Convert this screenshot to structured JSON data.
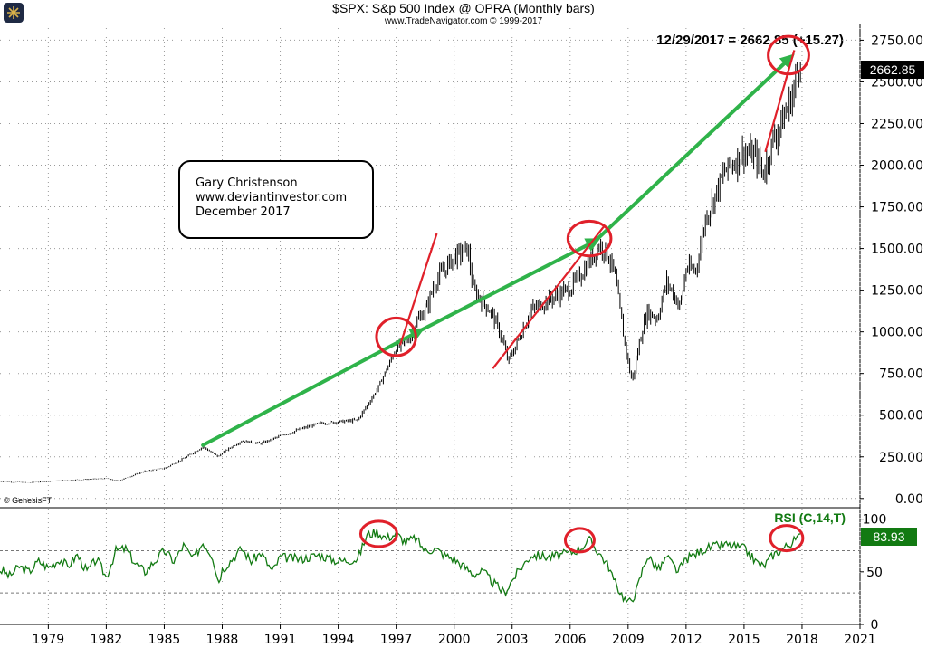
{
  "header": {
    "title": "$SPX:  S&p 500 Index @ OPRA  (Monthly bars)",
    "subtitle": "www.TradeNavigator.com © 1999-2017",
    "last_price_label": "12/29/2017 = 2662.85 (+15.27)",
    "last_price_badge": "2662.85"
  },
  "annotation": {
    "lines": [
      "Gary Christenson",
      "www.deviantinvestor.com",
      "December 2017"
    ]
  },
  "source_credit": "© GenesisFT",
  "rsi": {
    "label": "RSI (C,14,T)",
    "last_value_badge": "83.93"
  },
  "colors": {
    "price_line": "#000000",
    "rsi_line": "#127a12",
    "trend_arrow": "#2fb34a",
    "red_marks": "#e0202a",
    "grid": "#9a9a9a",
    "badge_bg": "#000000",
    "rsi_badge_bg": "#127a12"
  },
  "chart_data": [
    {
      "type": "line",
      "title": "$SPX: S&p 500 Index @ OPRA (Monthly bars)",
      "xlabel": "",
      "ylabel": "",
      "xlim": [
        1976.5,
        2021
      ],
      "ylim": [
        -50,
        2850
      ],
      "x_ticks": [
        "1979",
        "1982",
        "1985",
        "1988",
        "1991",
        "1994",
        "1997",
        "2000",
        "2003",
        "2006",
        "2009",
        "2012",
        "2015",
        "2018",
        "2021"
      ],
      "y_ticks": [
        "0.00",
        "250.00",
        "500.00",
        "750.00",
        "1000.00",
        "1250.00",
        "1500.00",
        "1750.00",
        "2000.00",
        "2250.00",
        "2500.00",
        "2750.00"
      ],
      "series": [
        {
          "name": "S&P 500 monthly close",
          "x": [
            1976.5,
            1978,
            1980,
            1982,
            1982.6,
            1984,
            1985,
            1986,
            1987,
            1987.8,
            1988,
            1989,
            1990,
            1991,
            1992,
            1993,
            1994,
            1995,
            1995.5,
            1996,
            1997,
            1997.6,
            1998,
            1998.6,
            1999,
            2000,
            2000.7,
            2001,
            2001.7,
            2002,
            2002.5,
            2002.8,
            2003,
            2004,
            2005,
            2006,
            2006.9,
            2007.5,
            2007.9,
            2008.3,
            2008.8,
            2009,
            2009.2,
            2009.7,
            2010,
            2010.5,
            2011,
            2011.7,
            2012,
            2012.5,
            2013,
            2014,
            2015,
            2015.6,
            2016,
            2016.5,
            2017,
            2017.5,
            2017.92
          ],
          "values": [
            100,
            95,
            110,
            120,
            105,
            165,
            180,
            240,
            310,
            250,
            275,
            345,
            330,
            375,
            415,
            450,
            460,
            470,
            560,
            650,
            900,
            950,
            1050,
            1150,
            1300,
            1450,
            1500,
            1250,
            1150,
            1100,
            950,
            820,
            870,
            1130,
            1200,
            1260,
            1400,
            1520,
            1480,
            1350,
            950,
            820,
            700,
            1000,
            1120,
            1080,
            1300,
            1150,
            1380,
            1370,
            1680,
            1960,
            2080,
            2050,
            1950,
            2150,
            2270,
            2420,
            2662.85
          ]
        },
        {
          "name": "Trend arrow",
          "x": [
            1987,
            1998.2,
            2007.3,
            2017.4
          ],
          "values": [
            320,
            1005,
            1545,
            2645
          ]
        }
      ],
      "annotations": [
        {
          "text": "12/29/2017 = 2662.85 (+15.27)"
        },
        {
          "text": "2662.85"
        }
      ]
    },
    {
      "type": "line",
      "title": "RSI (C,14,T)",
      "xlim": [
        1976.5,
        2021
      ],
      "ylim": [
        0,
        110
      ],
      "y_ticks": [
        "0",
        "50",
        "100"
      ],
      "reference_lines": [
        30,
        70
      ],
      "series": [
        {
          "name": "RSI(14)",
          "x": [
            1976.5,
            1977,
            1977.5,
            1978,
            1978.5,
            1979,
            1979.6,
            1980,
            1980.5,
            1981,
            1981.5,
            1982,
            1982.5,
            1983,
            1983.5,
            1984,
            1984.6,
            1985,
            1985.5,
            1986,
            1986.5,
            1987,
            1987.5,
            1987.8,
            1988,
            1989,
            1989.5,
            1990,
            1990.6,
            1991,
            1992,
            1993,
            1994,
            1995,
            1995.5,
            1996,
            1996.5,
            1997,
            1997.5,
            1998,
            1998.5,
            1999,
            1999.5,
            2000,
            2000.5,
            2001,
            2001.5,
            2002,
            2002.6,
            2003,
            2003.5,
            2004,
            2005,
            2006,
            2006.5,
            2007,
            2007.5,
            2008,
            2008.3,
            2008.8,
            2009,
            2009.4,
            2009.8,
            2010,
            2010.6,
            2011,
            2011.6,
            2012,
            2013,
            2014,
            2015,
            2015.6,
            2016,
            2016.5,
            2017,
            2017.5,
            2017.92
          ],
          "values": [
            52,
            46,
            55,
            50,
            60,
            54,
            62,
            55,
            66,
            50,
            62,
            45,
            70,
            72,
            58,
            50,
            62,
            70,
            60,
            75,
            62,
            78,
            65,
            40,
            52,
            72,
            60,
            68,
            50,
            64,
            62,
            66,
            60,
            62,
            85,
            88,
            82,
            86,
            78,
            82,
            70,
            72,
            66,
            62,
            55,
            48,
            50,
            40,
            30,
            42,
            55,
            66,
            64,
            68,
            72,
            80,
            68,
            55,
            40,
            25,
            20,
            30,
            55,
            65,
            52,
            64,
            50,
            62,
            72,
            76,
            72,
            60,
            55,
            66,
            72,
            78,
            83.93
          ]
        }
      ],
      "annotations": [
        {
          "text": "RSI (C,14,T)"
        },
        {
          "text": "83.93"
        }
      ]
    }
  ]
}
